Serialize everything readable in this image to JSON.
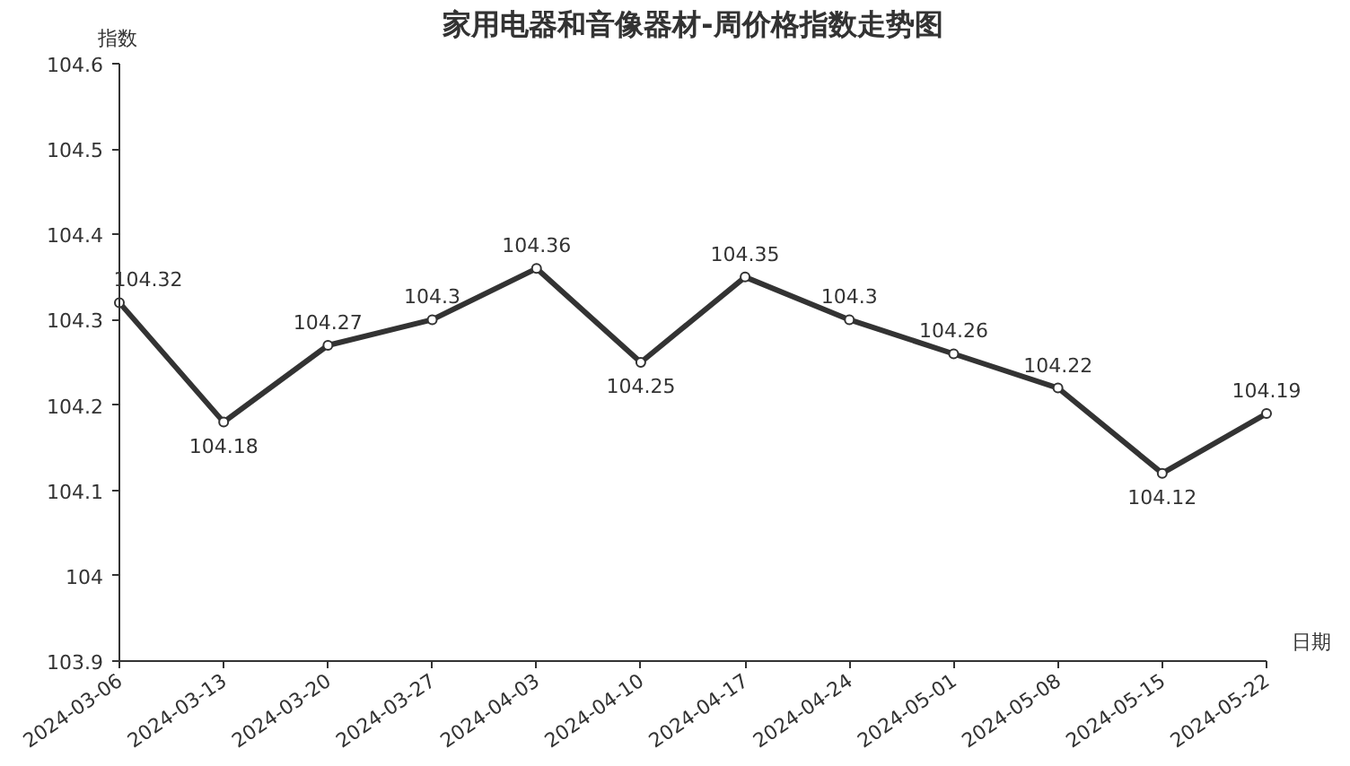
{
  "chart_data": {
    "type": "line",
    "title": "家用电器和音像器材-周价格指数走势图",
    "xlabel": "日期",
    "ylabel": "指数",
    "categories": [
      "2024-03-06",
      "2024-03-13",
      "2024-03-20",
      "2024-03-27",
      "2024-04-03",
      "2024-04-10",
      "2024-04-17",
      "2024-04-24",
      "2024-05-01",
      "2024-05-08",
      "2024-05-15",
      "2024-05-22"
    ],
    "series": [
      {
        "color": "#333333",
        "values": [
          104.32,
          104.18,
          104.27,
          104.3,
          104.36,
          104.25,
          104.35,
          104.3,
          104.26,
          104.22,
          104.12,
          104.19
        ]
      }
    ],
    "ylim": [
      103.9,
      104.6
    ],
    "yticks": [
      103.9,
      104,
      104.1,
      104.2,
      104.3,
      104.4,
      104.5,
      104.6
    ],
    "grid": false,
    "marker": "circle",
    "line_style": "solid",
    "data_labels": true
  }
}
